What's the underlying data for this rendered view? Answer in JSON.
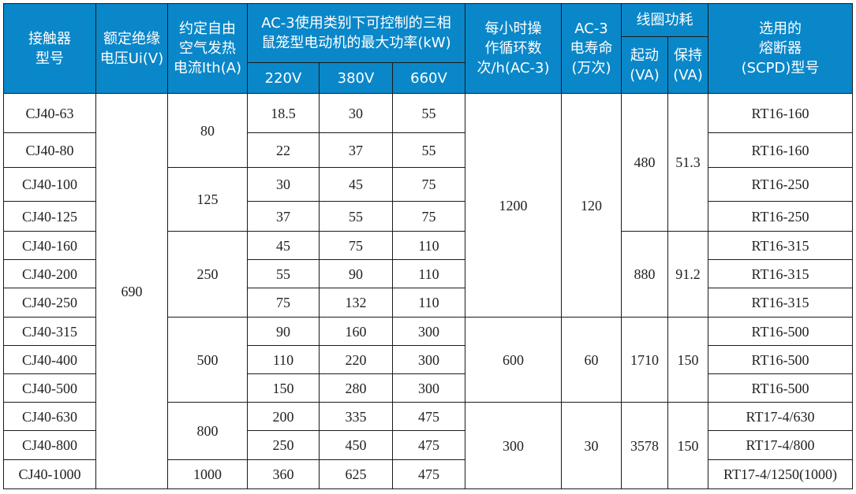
{
  "header": {
    "model": "接触器\n型号",
    "ui": "额定绝缘\n电压Ui(V)",
    "ith": "约定自由\n空气发热\n电流Ith(A)",
    "power": "AC-3使用类别下可控制的三相\n鼠笼型电动机的最大功率(kW)",
    "v220": "220V",
    "v380": "380V",
    "v660": "660V",
    "cycles": "每小时操\n作循环数\n次/h(AC-3)",
    "life": "AC-3\n电寿命\n(万次)",
    "coil": "线圈功耗",
    "start": "起动\n(VA)",
    "hold": "保持\n(VA)",
    "fuse": "选用的\n熔断器\n(SCPD)型号"
  },
  "rows": [
    {
      "model": "CJ40-63",
      "p220": "18.5",
      "p380": "30",
      "p660": "55",
      "fuse": "RT16-160"
    },
    {
      "model": "CJ40-80",
      "p220": "22",
      "p380": "37",
      "p660": "55",
      "fuse": "RT16-160"
    },
    {
      "model": "CJ40-100",
      "p220": "30",
      "p380": "45",
      "p660": "75",
      "fuse": "RT16-250"
    },
    {
      "model": "CJ40-125",
      "p220": "37",
      "p380": "55",
      "p660": "75",
      "fuse": "RT16-250"
    },
    {
      "model": "CJ40-160",
      "p220": "45",
      "p380": "75",
      "p660": "110",
      "fuse": "RT16-315"
    },
    {
      "model": "CJ40-200",
      "p220": "55",
      "p380": "90",
      "p660": "110",
      "fuse": "RT16-315"
    },
    {
      "model": "CJ40-250",
      "p220": "75",
      "p380": "132",
      "p660": "110",
      "fuse": "RT16-315"
    },
    {
      "model": "CJ40-315",
      "p220": "90",
      "p380": "160",
      "p660": "300",
      "fuse": "RT16-500"
    },
    {
      "model": "CJ40-400",
      "p220": "110",
      "p380": "220",
      "p660": "300",
      "fuse": "RT16-500"
    },
    {
      "model": "CJ40-500",
      "p220": "150",
      "p380": "280",
      "p660": "300",
      "fuse": "RT16-500"
    },
    {
      "model": "CJ40-630",
      "p220": "200",
      "p380": "335",
      "p660": "475",
      "fuse": "RT17-4/630"
    },
    {
      "model": "CJ40-800",
      "p220": "250",
      "p380": "450",
      "p660": "475",
      "fuse": "RT17-4/800"
    },
    {
      "model": "CJ40-1000",
      "p220": "360",
      "p380": "625",
      "p660": "475",
      "fuse": "RT17-4/1250(1000)"
    }
  ],
  "ui_value": "690",
  "ith_groups": [
    "80",
    "125",
    "250",
    "500",
    "800",
    "1000"
  ],
  "cycles_groups": [
    "1200",
    "600",
    "300"
  ],
  "life_groups": [
    "120",
    "60",
    "30"
  ],
  "start_groups": [
    "480",
    "880",
    "1710",
    "3578"
  ],
  "hold_groups": [
    "51.3",
    "91.2",
    "150",
    "150"
  ]
}
